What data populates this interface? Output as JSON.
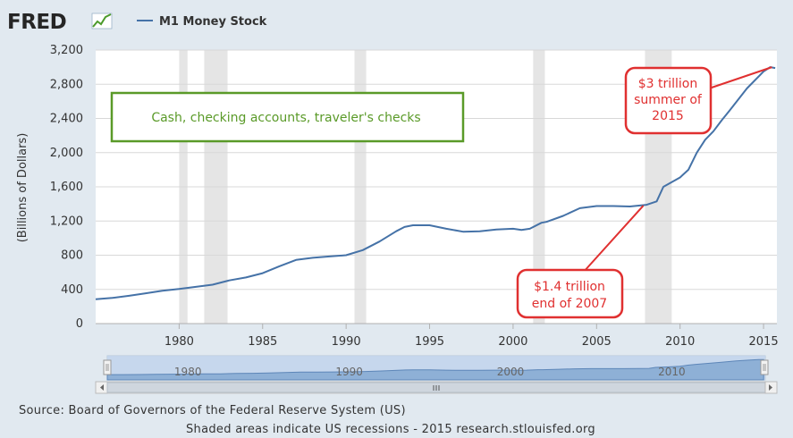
{
  "brand": {
    "name": "FRED"
  },
  "chart_data": {
    "type": "line",
    "title": "M1 Money Stock",
    "series": [
      {
        "name": "M1 Money Stock",
        "color": "#4572a7",
        "points": [
          [
            1975.0,
            285
          ],
          [
            1976.0,
            300
          ],
          [
            1977.0,
            325
          ],
          [
            1978.0,
            355
          ],
          [
            1979.0,
            385
          ],
          [
            1980.0,
            405
          ],
          [
            1981.0,
            430
          ],
          [
            1982.0,
            455
          ],
          [
            1983.0,
            505
          ],
          [
            1984.0,
            540
          ],
          [
            1985.0,
            590
          ],
          [
            1986.0,
            670
          ],
          [
            1987.0,
            745
          ],
          [
            1988.0,
            770
          ],
          [
            1989.0,
            785
          ],
          [
            1990.0,
            800
          ],
          [
            1991.0,
            860
          ],
          [
            1992.0,
            960
          ],
          [
            1993.0,
            1080
          ],
          [
            1993.5,
            1130
          ],
          [
            1994.0,
            1150
          ],
          [
            1995.0,
            1150
          ],
          [
            1996.0,
            1110
          ],
          [
            1997.0,
            1075
          ],
          [
            1998.0,
            1080
          ],
          [
            1999.0,
            1100
          ],
          [
            2000.0,
            1110
          ],
          [
            2000.5,
            1095
          ],
          [
            2001.0,
            1110
          ],
          [
            2001.7,
            1180
          ],
          [
            2002.0,
            1190
          ],
          [
            2003.0,
            1260
          ],
          [
            2004.0,
            1350
          ],
          [
            2005.0,
            1375
          ],
          [
            2006.0,
            1375
          ],
          [
            2007.0,
            1370
          ],
          [
            2008.0,
            1390
          ],
          [
            2008.6,
            1430
          ],
          [
            2009.0,
            1600
          ],
          [
            2010.0,
            1710
          ],
          [
            2010.5,
            1800
          ],
          [
            2011.0,
            2000
          ],
          [
            2011.5,
            2150
          ],
          [
            2012.0,
            2250
          ],
          [
            2012.5,
            2380
          ],
          [
            2013.0,
            2500
          ],
          [
            2014.0,
            2750
          ],
          [
            2015.0,
            2950
          ],
          [
            2015.4,
            3000
          ],
          [
            2015.7,
            2990
          ]
        ]
      }
    ],
    "xlim": [
      1975,
      2015.8
    ],
    "ylim": [
      0,
      3200
    ],
    "xticks": [
      1980,
      1985,
      1990,
      1995,
      2000,
      2005,
      2010,
      2015
    ],
    "xtick_labels": [
      "1980",
      "1985",
      "1990",
      "1995",
      "2000",
      "2005",
      "2010",
      "2015"
    ],
    "yticks": [
      0,
      400,
      800,
      1200,
      1600,
      2000,
      2400,
      2800,
      3200
    ],
    "ytick_labels": [
      "0",
      "400",
      "800",
      "1,200",
      "1,600",
      "2,000",
      "2,400",
      "2,800",
      "3,200"
    ],
    "ylabel": "(Billions of Dollars)",
    "xlabel": "",
    "grid": "horizontal",
    "recessions": [
      [
        1980.0,
        1980.5
      ],
      [
        1981.5,
        1982.9
      ],
      [
        1990.5,
        1991.2
      ],
      [
        2001.2,
        2001.9
      ],
      [
        2007.9,
        2009.5
      ]
    ],
    "recession_color": "#e5e5e5",
    "annotations": {
      "green_box": {
        "text": "Cash, checking accounts, traveler's checks",
        "color": "#5a9a28"
      },
      "callout_2015": {
        "lines": [
          "$3 trillion",
          "summer of",
          "2015"
        ],
        "color": "#e03030",
        "arrow_to": [
          2015.5,
          3000
        ]
      },
      "callout_2007": {
        "lines": [
          "$1.4 trillion",
          "end of 2007"
        ],
        "color": "#e03030",
        "arrow_to": [
          2007.8,
          1380
        ]
      }
    }
  },
  "navigator": {
    "labels": [
      "1980",
      "1990",
      "2000",
      "2010"
    ],
    "label_years": [
      1980,
      1990,
      2000,
      2010
    ]
  },
  "footer": {
    "source": "Source: Board of Governors of the Federal Reserve System (US)",
    "note": "Shaded areas indicate US recessions - 2015 research.stlouisfed.org"
  }
}
